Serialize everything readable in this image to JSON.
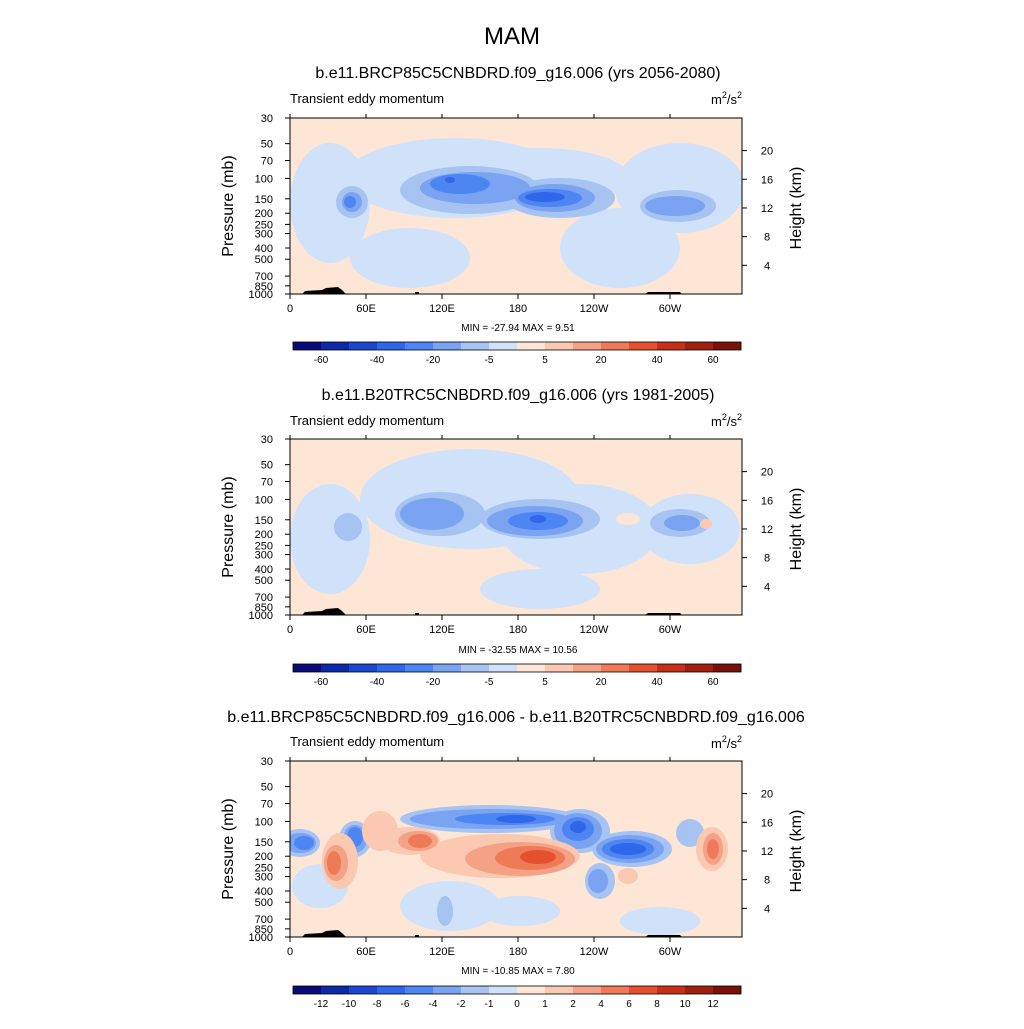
{
  "main_title": "MAM",
  "panels": [
    {
      "title": "b.e11.BRCP85C5CNBDRD.f09_g16.006 (yrs 2056-2080)",
      "left_label": "Transient eddy momentum",
      "units_base": "m",
      "units_exp1": "2",
      "units_mid": "/s",
      "units_exp2": "2",
      "stats": "MIN = -27.94  MAX =   9.51"
    },
    {
      "title": "b.e11.B20TRC5CNBDRD.f09_g16.006 (yrs 1981-2005)",
      "left_label": "Transient eddy momentum",
      "units_base": "m",
      "units_exp1": "2",
      "units_mid": "/s",
      "units_exp2": "2",
      "stats": "MIN = -32.55  MAX =  10.56"
    },
    {
      "title": "b.e11.BRCP85C5CNBDRD.f09_g16.006 - b.e11.B20TRC5CNBDRD.f09_g16.006",
      "left_label": "Transient eddy momentum",
      "units_base": "m",
      "units_exp1": "2",
      "units_mid": "/s",
      "units_exp2": "2",
      "stats": "MIN = -10.85  MAX =   7.80"
    }
  ],
  "chart_data": [
    {
      "type": "heatmap",
      "ylabel": "Pressure (mb)",
      "y2label": "Height (km)",
      "x_ticks": [
        "0",
        "60E",
        "120E",
        "180",
        "120W",
        "60W"
      ],
      "y_ticks": [
        "30",
        "50",
        "70",
        "100",
        "150",
        "200",
        "250",
        "300",
        "400",
        "500",
        "700",
        "850",
        "1000"
      ],
      "y_tick_values": [
        30,
        50,
        70,
        100,
        150,
        200,
        250,
        300,
        400,
        500,
        700,
        850,
        1000
      ],
      "height_ticks": [
        "20",
        "16",
        "12",
        "8",
        "4"
      ],
      "height_tick_values": [
        20,
        16,
        12,
        8,
        4
      ],
      "colorbar_labels": [
        "-60",
        "-40",
        "-20",
        "-5",
        "5",
        "20",
        "40",
        "60"
      ],
      "colorbar_colors": [
        "#0a0a78",
        "#0c2aa8",
        "#1a46d0",
        "#2f66ea",
        "#4d86f2",
        "#7aa4f2",
        "#a6c3f2",
        "#cfe2fa",
        "#fde6d6",
        "#fbc8b1",
        "#f4a286",
        "#ee7a58",
        "#e5502e",
        "#c63018",
        "#a0200f",
        "#781208"
      ],
      "min": -27.94,
      "max": 9.51
    },
    {
      "type": "heatmap",
      "ylabel": "Pressure (mb)",
      "y2label": "Height (km)",
      "x_ticks": [
        "0",
        "60E",
        "120E",
        "180",
        "120W",
        "60W"
      ],
      "y_ticks": [
        "30",
        "50",
        "70",
        "100",
        "150",
        "200",
        "250",
        "300",
        "400",
        "500",
        "700",
        "850",
        "1000"
      ],
      "y_tick_values": [
        30,
        50,
        70,
        100,
        150,
        200,
        250,
        300,
        400,
        500,
        700,
        850,
        1000
      ],
      "height_ticks": [
        "20",
        "16",
        "12",
        "8",
        "4"
      ],
      "height_tick_values": [
        20,
        16,
        12,
        8,
        4
      ],
      "colorbar_labels": [
        "-60",
        "-40",
        "-20",
        "-5",
        "5",
        "20",
        "40",
        "60"
      ],
      "colorbar_colors": [
        "#0a0a78",
        "#0c2aa8",
        "#1a46d0",
        "#2f66ea",
        "#4d86f2",
        "#7aa4f2",
        "#a6c3f2",
        "#cfe2fa",
        "#fde6d6",
        "#fbc8b1",
        "#f4a286",
        "#ee7a58",
        "#e5502e",
        "#c63018",
        "#a0200f",
        "#781208"
      ],
      "min": -32.55,
      "max": 10.56
    },
    {
      "type": "heatmap",
      "ylabel": "Pressure (mb)",
      "y2label": "Height (km)",
      "x_ticks": [
        "0",
        "60E",
        "120E",
        "180",
        "120W",
        "60W"
      ],
      "y_ticks": [
        "30",
        "50",
        "70",
        "100",
        "150",
        "200",
        "250",
        "300",
        "400",
        "500",
        "700",
        "850",
        "1000"
      ],
      "y_tick_values": [
        30,
        50,
        70,
        100,
        150,
        200,
        250,
        300,
        400,
        500,
        700,
        850,
        1000
      ],
      "height_ticks": [
        "20",
        "16",
        "12",
        "8",
        "4"
      ],
      "height_tick_values": [
        20,
        16,
        12,
        8,
        4
      ],
      "colorbar_labels": [
        "-12",
        "-10",
        "-8",
        "-6",
        "-4",
        "-2",
        "-1",
        "0",
        "1",
        "2",
        "4",
        "6",
        "8",
        "10",
        "12"
      ],
      "colorbar_colors": [
        "#0a0a78",
        "#0c2aa8",
        "#1a46d0",
        "#2f66ea",
        "#4d86f2",
        "#7aa4f2",
        "#a6c3f2",
        "#cfe2fa",
        "#fde6d6",
        "#fbc8b1",
        "#f4a286",
        "#ee7a58",
        "#e5502e",
        "#c63018",
        "#a0200f",
        "#781208"
      ],
      "min": -10.85,
      "max": 7.8
    }
  ]
}
